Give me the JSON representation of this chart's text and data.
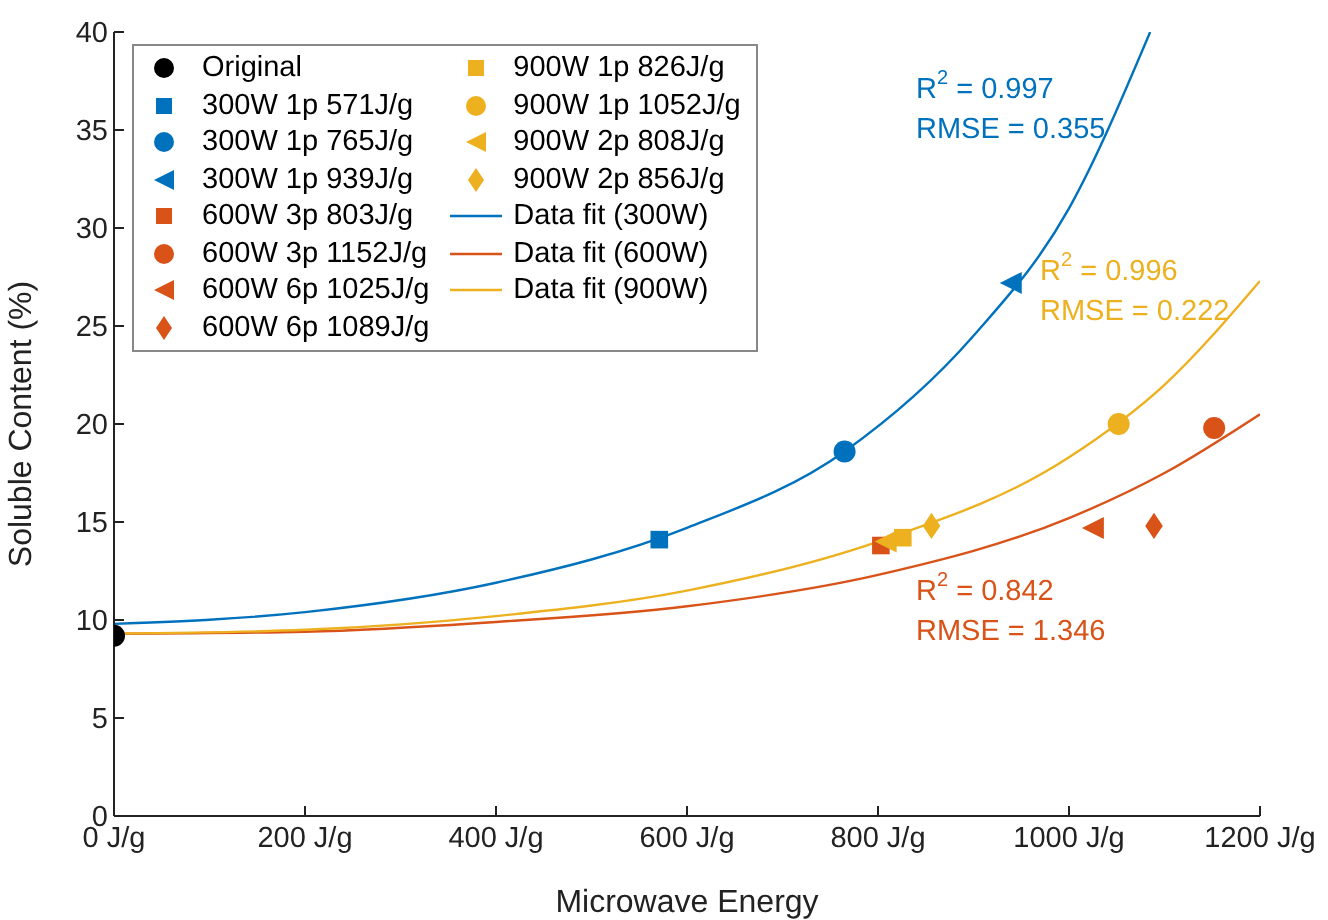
{
  "chart_data": {
    "type": "scatter",
    "xlabel": "Microwave Energy",
    "ylabel": "Soluble Content (%)",
    "xlim": [
      0,
      1200
    ],
    "xticks": [
      {
        "value": 0,
        "label": "0 J/g"
      },
      {
        "value": 200,
        "label": "200 J/g"
      },
      {
        "value": 400,
        "label": "400 J/g"
      },
      {
        "value": 600,
        "label": "600 J/g"
      },
      {
        "value": 800,
        "label": "800 J/g"
      },
      {
        "value": 1000,
        "label": "1000 J/g"
      },
      {
        "value": 1200,
        "label": "1200 J/g"
      }
    ],
    "ylim": [
      0,
      40
    ],
    "yticks": [
      0,
      5,
      10,
      15,
      20,
      25,
      30,
      35,
      40
    ],
    "legend": "top left",
    "series": [
      {
        "name": "Original",
        "color": "#000000",
        "marker": "circle",
        "x": [
          0
        ],
        "values": [
          9.2
        ]
      },
      {
        "name": "300W 1p 571J/g",
        "color": "#0072bd",
        "marker": "square",
        "x": [
          571
        ],
        "values": [
          14.1
        ]
      },
      {
        "name": "300W 1p 765J/g",
        "color": "#0072bd",
        "marker": "circle",
        "x": [
          765
        ],
        "values": [
          18.6
        ]
      },
      {
        "name": "300W 1p 939J/g",
        "color": "#0072bd",
        "marker": "triangle",
        "x": [
          939
        ],
        "values": [
          27.2
        ]
      },
      {
        "name": "600W 3p 803J/g",
        "color": "#d95319",
        "marker": "square",
        "x": [
          803
        ],
        "values": [
          13.8
        ]
      },
      {
        "name": "600W 3p 1152J/g",
        "color": "#d95319",
        "marker": "circle",
        "x": [
          1152
        ],
        "values": [
          19.8
        ]
      },
      {
        "name": "600W 6p 1025J/g",
        "color": "#d95319",
        "marker": "triangle",
        "x": [
          1025
        ],
        "values": [
          14.7
        ]
      },
      {
        "name": "600W 6p 1089J/g",
        "color": "#d95319",
        "marker": "diamond",
        "x": [
          1089
        ],
        "values": [
          14.8
        ]
      },
      {
        "name": "900W 1p 826J/g",
        "color": "#edb120",
        "marker": "square",
        "x": [
          826
        ],
        "values": [
          14.2
        ]
      },
      {
        "name": "900W 1p 1052J/g",
        "color": "#edb120",
        "marker": "circle",
        "x": [
          1052
        ],
        "values": [
          20.0
        ]
      },
      {
        "name": "900W 2p 808J/g",
        "color": "#edb120",
        "marker": "triangle",
        "x": [
          808
        ],
        "values": [
          14.0
        ]
      },
      {
        "name": "900W 2p 856J/g",
        "color": "#edb120",
        "marker": "diamond",
        "x": [
          856
        ],
        "values": [
          14.8
        ]
      },
      {
        "name": "Data fit (300W)",
        "type": "line",
        "color": "#0072bd",
        "marker": "none",
        "line_style": "solid",
        "x": [
          0,
          200,
          400,
          600,
          765,
          900,
          1000,
          1085
        ],
        "values": [
          9.8,
          10.4,
          11.9,
          14.7,
          18.6,
          24.5,
          31,
          40
        ]
      },
      {
        "name": "Data fit (600W)",
        "type": "line",
        "color": "#d95319",
        "marker": "none",
        "line_style": "solid",
        "x": [
          0,
          200,
          400,
          600,
          800,
          1000,
          1100,
          1200
        ],
        "values": [
          9.3,
          9.4,
          9.9,
          10.7,
          12.3,
          15.2,
          17.5,
          20.5
        ]
      },
      {
        "name": "Data fit (900W)",
        "type": "line",
        "color": "#edb120",
        "marker": "none",
        "line_style": "solid",
        "x": [
          0,
          200,
          400,
          600,
          800,
          1000,
          1100,
          1200
        ],
        "values": [
          9.3,
          9.5,
          10.2,
          11.5,
          14.0,
          18.3,
          22.0,
          27.3
        ]
      }
    ],
    "annotations": [
      "R$^{2}$ = 0.997",
      "RMSE = 0.355",
      "R$^{2}$ = 0.842",
      "RMSE = 1.346",
      "R$^{2}$ = 0.996",
      "RMSE = 0.222"
    ]
  }
}
